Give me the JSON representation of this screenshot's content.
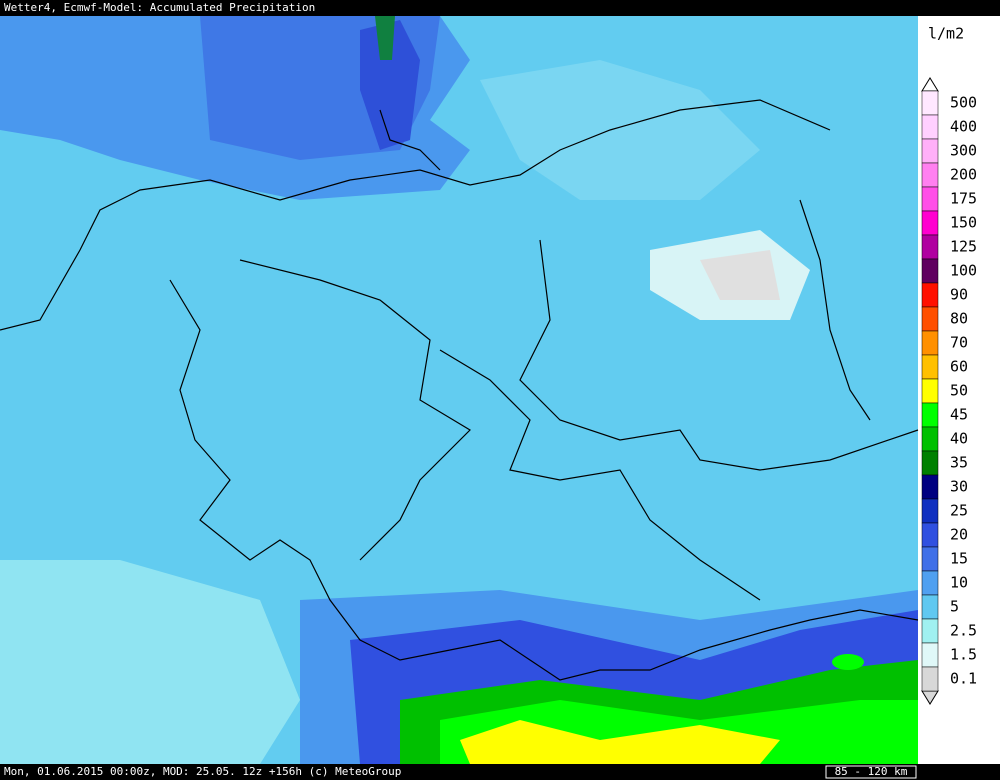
{
  "header": {
    "title": "Wetter4, Ecmwf-Model: Accumulated Precipitation"
  },
  "legend": {
    "unit": "l/m2",
    "items": [
      {
        "label": "500",
        "color": "#ffe8ff"
      },
      {
        "label": "400",
        "color": "#ffd0ff"
      },
      {
        "label": "300",
        "color": "#ffb0f8"
      },
      {
        "label": "200",
        "color": "#ff80f0"
      },
      {
        "label": "175",
        "color": "#ff50e8"
      },
      {
        "label": "150",
        "color": "#ff00d0"
      },
      {
        "label": "125",
        "color": "#b000a0"
      },
      {
        "label": "100",
        "color": "#600060"
      },
      {
        "label": "90",
        "color": "#ff1000"
      },
      {
        "label": "80",
        "color": "#ff5000"
      },
      {
        "label": "70",
        "color": "#ff9000"
      },
      {
        "label": "60",
        "color": "#ffc000"
      },
      {
        "label": "50",
        "color": "#ffff00"
      },
      {
        "label": "45",
        "color": "#00ff00"
      },
      {
        "label": "40",
        "color": "#00c000"
      },
      {
        "label": "35",
        "color": "#008000"
      },
      {
        "label": "30",
        "color": "#000080"
      },
      {
        "label": "25",
        "color": "#1030c0"
      },
      {
        "label": "20",
        "color": "#3050e0"
      },
      {
        "label": "15",
        "color": "#4070e8"
      },
      {
        "label": "10",
        "color": "#50a0f0"
      },
      {
        "label": "5",
        "color": "#60c8f0"
      },
      {
        "label": "2.5",
        "color": "#a0f0f0"
      },
      {
        "label": "1.5",
        "color": "#e0f8f8"
      },
      {
        "label": "0.1",
        "color": "#d8d8d8"
      }
    ]
  },
  "footer": {
    "info": "Mon, 01.06.2015 00:00z, MOD: 25.05. 12z +156h (c) MeteoGroup",
    "scale": "85 - 120 km"
  }
}
